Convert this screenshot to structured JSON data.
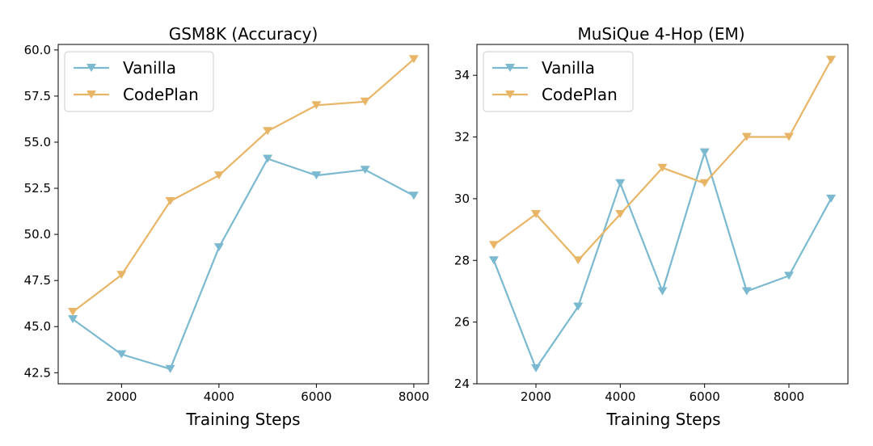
{
  "chart_data": [
    {
      "type": "line",
      "title": "GSM8K (Accuracy)",
      "xlabel": "Training Steps",
      "ylabel": "",
      "x": [
        1000,
        2000,
        3000,
        4000,
        5000,
        6000,
        7000,
        8000
      ],
      "xticks": [
        2000,
        4000,
        6000,
        8000
      ],
      "xtick_labels": [
        "2000",
        "4000",
        "6000",
        "8000"
      ],
      "xlim": [
        700,
        8300
      ],
      "yticks": [
        42.5,
        45.0,
        47.5,
        50.0,
        52.5,
        55.0,
        57.5,
        60.0
      ],
      "ytick_labels": [
        "42.5",
        "45.0",
        "47.5",
        "50.0",
        "52.5",
        "55.0",
        "57.5",
        "60.0"
      ],
      "ylim": [
        41.9,
        60.3
      ],
      "legend_position": "top-left",
      "grid": false,
      "series": [
        {
          "name": "Vanilla",
          "color": "#7ab9cf",
          "marker": "triangle-down",
          "values": [
            45.4,
            43.5,
            42.7,
            49.3,
            54.1,
            53.2,
            53.5,
            52.1
          ]
        },
        {
          "name": "CodePlan",
          "color": "#e8b566",
          "marker": "triangle-down",
          "values": [
            45.8,
            47.8,
            51.8,
            53.2,
            55.6,
            57.0,
            57.2,
            59.5
          ]
        }
      ]
    },
    {
      "type": "line",
      "title": "MuSiQue 4-Hop (EM)",
      "xlabel": "Training Steps",
      "ylabel": "",
      "x": [
        1000,
        2000,
        3000,
        4000,
        5000,
        6000,
        7000,
        8000,
        9000
      ],
      "xticks": [
        2000,
        4000,
        6000,
        8000
      ],
      "xtick_labels": [
        "2000",
        "4000",
        "6000",
        "8000"
      ],
      "xlim": [
        600,
        9400
      ],
      "yticks": [
        24,
        26,
        28,
        30,
        32,
        34
      ],
      "ytick_labels": [
        "24",
        "26",
        "28",
        "30",
        "32",
        "34"
      ],
      "ylim": [
        24,
        35.0
      ],
      "legend_position": "top-left",
      "grid": false,
      "series": [
        {
          "name": "Vanilla",
          "color": "#7ab9cf",
          "marker": "triangle-down",
          "values": [
            28.0,
            24.5,
            26.5,
            30.5,
            27.0,
            31.5,
            27.0,
            27.5,
            30.0
          ]
        },
        {
          "name": "CodePlan",
          "color": "#e8b566",
          "marker": "triangle-down",
          "values": [
            28.5,
            29.5,
            28.0,
            29.5,
            31.0,
            30.5,
            32.0,
            32.0,
            34.5
          ]
        }
      ]
    }
  ]
}
